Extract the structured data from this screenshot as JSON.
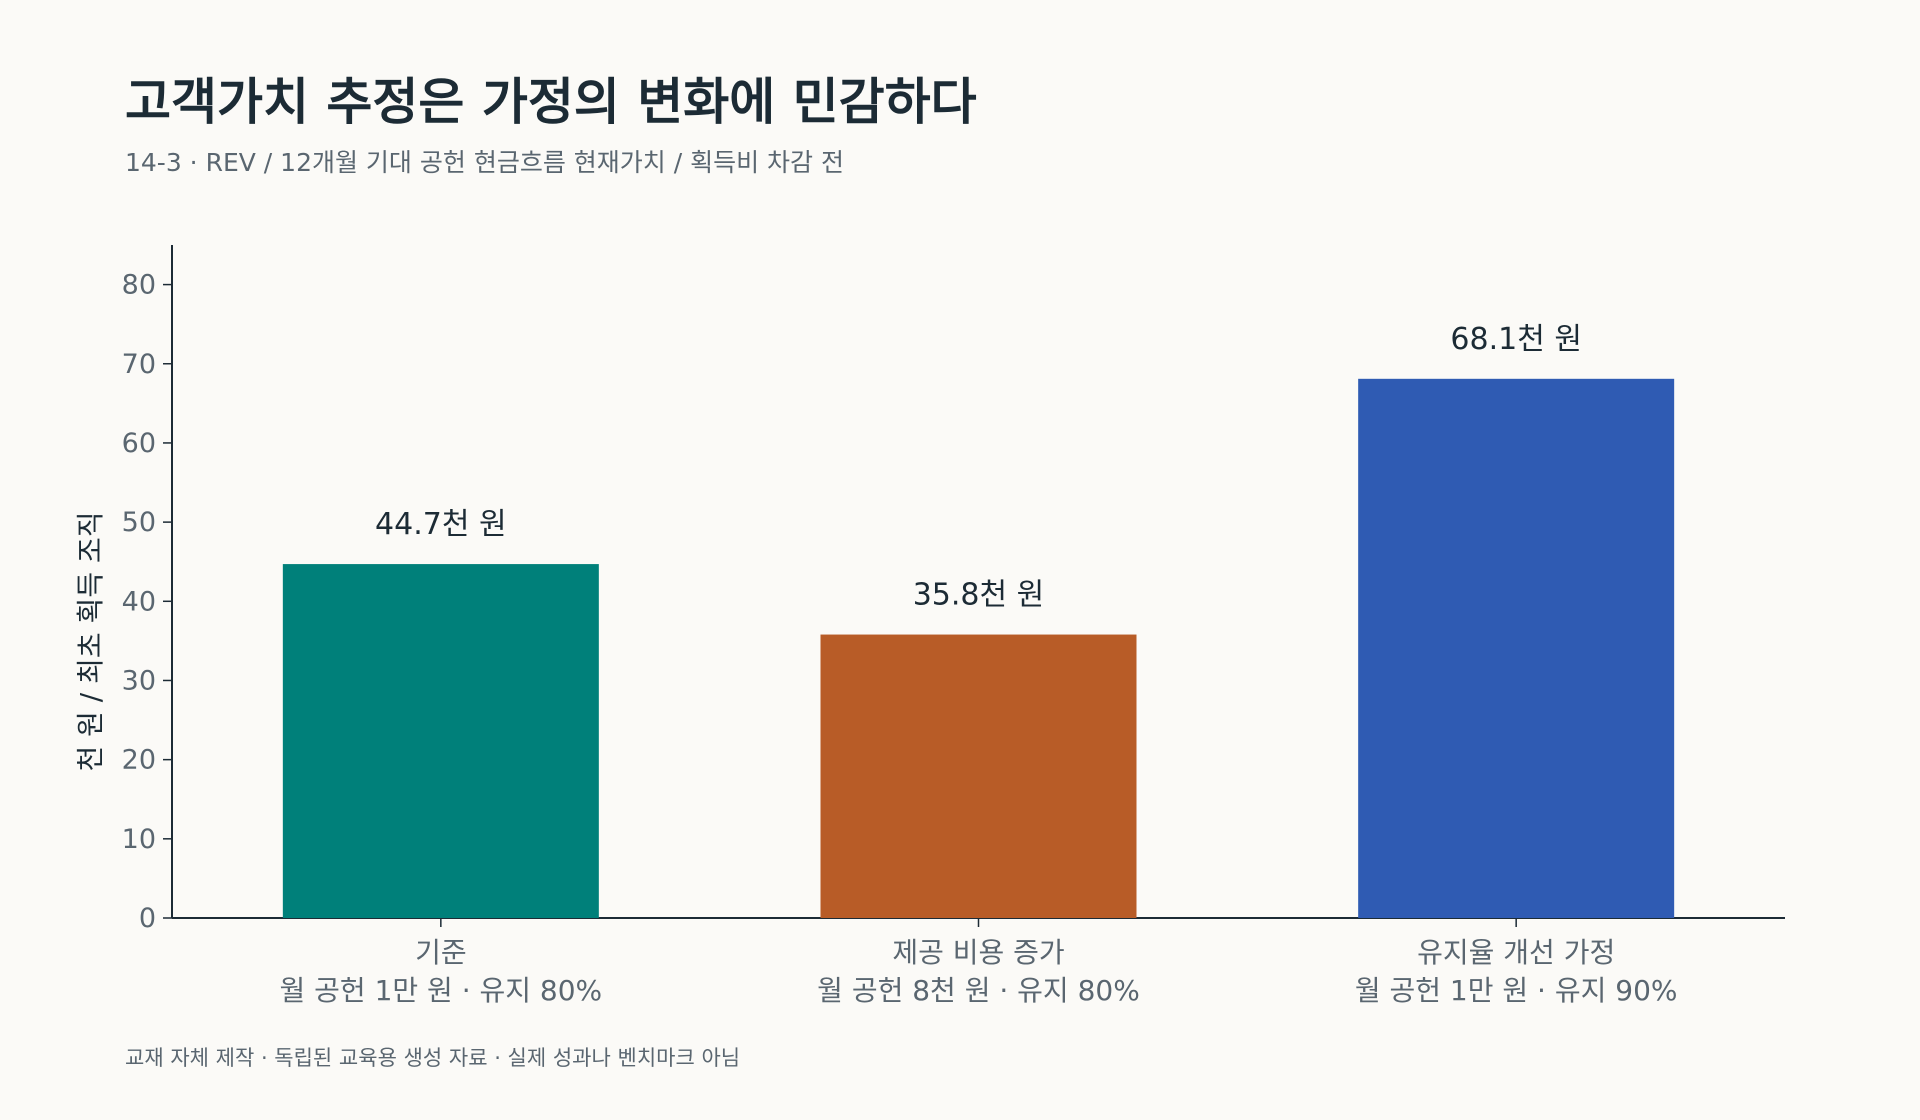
{
  "title": "고객가치 추정은 가정의 변화에 민감하다",
  "subtitle": "14-3 · REV / 12개월 기대 공헌 현금흐름 현재가치 / 획득비 차감 전",
  "footnote": "교재 자체 제작 · 독립된 교육용 생성 자료 · 실제 성과나 벤치마크 아님",
  "chart_data": {
    "type": "bar",
    "categories": [
      [
        "기준",
        "월 공헌 1만 원 · 유지 80%"
      ],
      [
        "제공 비용 증가",
        "월 공헌 8천 원 · 유지 80%"
      ],
      [
        "유지율 개선 가정",
        "월 공헌 1만 원 · 유지 90%"
      ]
    ],
    "values": [
      44.7,
      35.8,
      68.1
    ],
    "value_labels": [
      "44.7천 원",
      "35.8천 원",
      "68.1천 원"
    ],
    "colors": [
      "#00807a",
      "#b85c27",
      "#2f5bb3"
    ],
    "ylabel": "천 원 / 최초 획득 조직",
    "ylim": [
      0,
      85
    ],
    "yticks": [
      0,
      10,
      20,
      30,
      40,
      50,
      60,
      70,
      80
    ],
    "grid": false
  }
}
